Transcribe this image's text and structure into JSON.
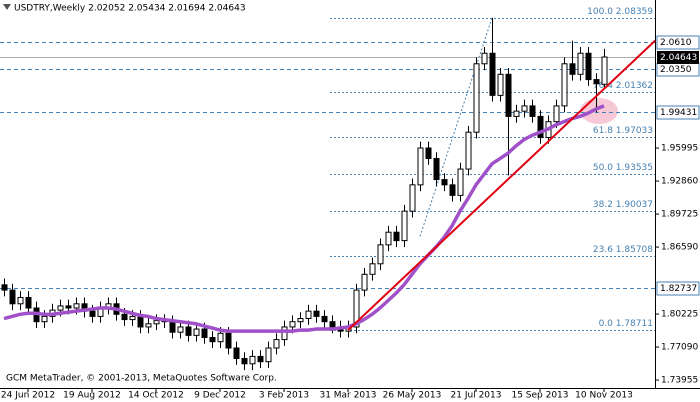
{
  "chart_data": {
    "type": "candlestick",
    "title": "USDTRY,Weekly  2.02052 2.05434 2.01694 2.04643",
    "footer": "GCM MetaTrader, © 2001-2013, MetaQuotes Software Corp.",
    "categories": [
      null,
      null,
      null,
      "24 Jun 2012",
      null,
      null,
      null,
      null,
      null,
      null,
      null,
      "19 Aug 2012",
      null,
      null,
      null,
      null,
      null,
      null,
      null,
      "14 Oct 2012",
      null,
      null,
      null,
      null,
      null,
      null,
      null,
      "9 Dec 2012",
      null,
      null,
      null,
      null,
      null,
      null,
      null,
      "3 Feb 2013",
      null,
      null,
      null,
      null,
      null,
      null,
      null,
      "31 Mar 2013",
      null,
      null,
      null,
      null,
      null,
      null,
      null,
      "26 May 2013",
      null,
      null,
      null,
      null,
      null,
      null,
      null,
      "21 Jul 2013",
      null,
      null,
      null,
      null,
      null,
      null,
      null,
      "15 Sep 2013",
      null,
      null,
      null,
      null,
      null,
      null,
      null,
      "10 Nov 2013"
    ],
    "open": [
      1.83,
      1.825,
      1.812,
      1.818,
      1.808,
      1.795,
      1.8,
      1.806,
      1.81,
      1.808,
      1.812,
      1.805,
      1.8,
      1.808,
      1.812,
      1.802,
      1.797,
      1.8,
      1.79,
      1.793,
      1.796,
      1.795,
      1.785,
      1.79,
      1.782,
      1.788,
      1.78,
      1.776,
      1.784,
      1.77,
      1.76,
      1.755,
      1.762,
      1.757,
      1.77,
      1.778,
      1.79,
      1.795,
      1.798,
      1.805,
      1.8,
      1.795,
      1.79,
      1.786,
      1.79,
      1.825,
      1.84,
      1.85,
      1.868,
      1.88,
      1.872,
      1.9,
      1.925,
      1.96,
      1.95,
      1.93,
      1.925,
      1.915,
      1.94,
      1.975,
      2.04,
      2.05,
      2.01,
      2.03,
      1.99,
      1.995,
      2.0,
      1.99,
      1.97,
      1.985,
      2.0,
      2.04,
      2.03,
      2.05,
      2.025,
      2.02052
    ],
    "high": [
      1.836,
      1.831,
      1.824,
      1.824,
      1.814,
      1.806,
      1.812,
      1.816,
      1.816,
      1.818,
      1.818,
      1.811,
      1.814,
      1.818,
      1.818,
      1.808,
      1.806,
      1.806,
      1.799,
      1.802,
      1.802,
      1.801,
      1.796,
      1.796,
      1.794,
      1.794,
      1.786,
      1.79,
      1.79,
      1.776,
      1.766,
      1.768,
      1.768,
      1.776,
      1.784,
      1.796,
      1.801,
      1.804,
      1.811,
      1.811,
      1.806,
      1.801,
      1.796,
      1.796,
      1.831,
      1.846,
      1.856,
      1.874,
      1.886,
      1.886,
      1.906,
      1.931,
      1.966,
      1.966,
      1.956,
      1.936,
      1.931,
      1.946,
      1.981,
      2.046,
      2.056,
      2.0836,
      2.036,
      2.036,
      2.001,
      2.006,
      2.006,
      1.996,
      1.991,
      2.006,
      2.046,
      2.062,
      2.056,
      2.056,
      2.031,
      2.05434
    ],
    "low": [
      1.819,
      1.806,
      1.806,
      1.802,
      1.789,
      1.789,
      1.794,
      1.8,
      1.802,
      1.802,
      1.799,
      1.794,
      1.794,
      1.802,
      1.796,
      1.791,
      1.791,
      1.784,
      1.784,
      1.787,
      1.789,
      1.779,
      1.779,
      1.776,
      1.776,
      1.774,
      1.77,
      1.77,
      1.764,
      1.754,
      1.749,
      1.749,
      1.751,
      1.751,
      1.764,
      1.772,
      1.784,
      1.789,
      1.792,
      1.794,
      1.789,
      1.784,
      1.78,
      1.78,
      1.784,
      1.819,
      1.834,
      1.844,
      1.862,
      1.866,
      1.866,
      1.894,
      1.919,
      1.944,
      1.924,
      1.919,
      1.909,
      1.909,
      1.934,
      1.969,
      2.034,
      2.004,
      2.004,
      1.934,
      1.984,
      1.989,
      1.984,
      1.964,
      1.964,
      1.979,
      1.994,
      2.024,
      2.024,
      2.019,
      1.994,
      2.01694
    ],
    "close": [
      1.825,
      1.812,
      1.818,
      1.808,
      1.795,
      1.8,
      1.806,
      1.81,
      1.808,
      1.812,
      1.805,
      1.8,
      1.808,
      1.812,
      1.802,
      1.797,
      1.8,
      1.79,
      1.793,
      1.796,
      1.795,
      1.785,
      1.79,
      1.782,
      1.788,
      1.78,
      1.776,
      1.784,
      1.77,
      1.76,
      1.755,
      1.762,
      1.757,
      1.77,
      1.778,
      1.79,
      1.795,
      1.798,
      1.805,
      1.8,
      1.795,
      1.79,
      1.786,
      1.79,
      1.825,
      1.84,
      1.85,
      1.868,
      1.88,
      1.872,
      1.9,
      1.925,
      1.96,
      1.95,
      1.93,
      1.925,
      1.915,
      1.94,
      1.975,
      2.04,
      2.05,
      2.01,
      2.03,
      1.99,
      1.995,
      2.0,
      1.99,
      1.97,
      1.985,
      2.0,
      2.04,
      2.03,
      2.05,
      2.025,
      2.021,
      2.04643
    ],
    "up_color": "#ffffff",
    "down_color": "#000000",
    "moving_average": {
      "color": "#a050c8",
      "values": [
        1.798,
        1.8,
        1.802,
        1.803,
        1.803,
        1.802,
        1.802,
        1.803,
        1.804,
        1.805,
        1.806,
        1.807,
        1.808,
        1.808,
        1.807,
        1.805,
        1.803,
        1.801,
        1.8,
        1.798,
        1.797,
        1.796,
        1.795,
        1.794,
        1.793,
        1.791,
        1.789,
        1.787,
        1.786,
        1.786,
        1.786,
        1.786,
        1.786,
        1.786,
        1.786,
        1.786,
        1.786,
        1.787,
        1.787,
        1.788,
        1.788,
        1.788,
        1.789,
        1.79,
        1.793,
        1.797,
        1.802,
        1.808,
        1.815,
        1.822,
        1.83,
        1.84,
        1.85,
        1.858,
        1.866,
        1.875,
        1.886,
        1.9,
        1.912,
        1.925,
        1.935,
        1.945,
        1.95,
        1.955,
        1.962,
        1.968,
        1.972,
        1.975,
        1.978,
        1.982,
        1.985,
        1.988,
        1.99,
        1.993,
        1.997,
        2.0
      ]
    },
    "trend_line": {
      "color": "#e00010",
      "from": [
        43,
        1.787
      ],
      "to": [
        81.4,
        2.062
      ]
    },
    "fib_line": {
      "color": "#4682b4",
      "from": [
        52,
        1.876
      ],
      "to": [
        61,
        2.0836
      ]
    },
    "fib_levels": [
      {
        "value": 2.08359,
        "label": "100.0 2.08359"
      },
      {
        "value": 2.01362,
        "label": "76.4 2.01362"
      },
      {
        "value": 1.97033,
        "label": "61.8 1.97033"
      },
      {
        "value": 1.93535,
        "label": "50.0 1.93535"
      },
      {
        "value": 1.90037,
        "label": "38.2 1.90037"
      },
      {
        "value": 1.85708,
        "label": "23.6 1.85708"
      },
      {
        "value": 1.78711,
        "label": "0.0 1.78711"
      }
    ],
    "levels": [
      {
        "value": 2.061,
        "label": "2.0610"
      },
      {
        "value": 2.035,
        "label": "2.0350"
      },
      {
        "value": 1.99431,
        "label": "1.99431"
      },
      {
        "value": 1.82737,
        "label": "1.82737"
      }
    ],
    "last_price": {
      "value": 2.04643,
      "label": "2.04643"
    },
    "ylim": [
      1.732,
      2.1006
    ],
    "yticks": [
      1.95995,
      {
        "value": 1.9286,
        "label": "1.92860"
      },
      1.89725,
      {
        "value": 1.8659,
        "label": "1.86590"
      },
      1.80225,
      {
        "value": 1.7709,
        "label": "1.77090"
      },
      1.73955
    ]
  }
}
